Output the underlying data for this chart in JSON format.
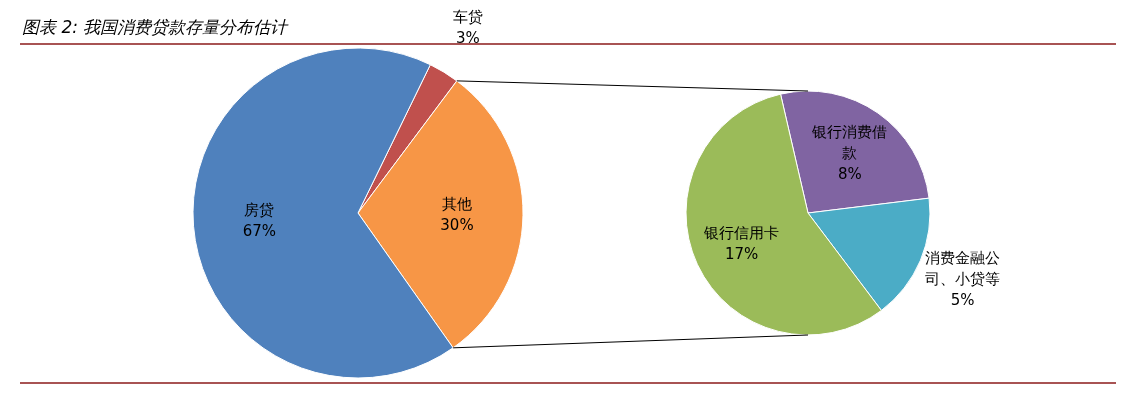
{
  "chart_data": [
    {
      "type": "pie",
      "title": "图表 2: 我国消费贷款存量分布估计",
      "categories": [
        "车贷",
        "其他",
        "房贷"
      ],
      "values": [
        3,
        30,
        67
      ],
      "colors": [
        "#c0504d",
        "#f79646",
        "#4f81bd"
      ],
      "value_labels": [
        "3%",
        "30%",
        "67%"
      ]
    },
    {
      "type": "pie",
      "categories": [
        "银行消费借款",
        "消费金融公司、小贷等",
        "银行信用卡"
      ],
      "values": [
        8,
        5,
        17
      ],
      "colors": [
        "#8064a2",
        "#4bacc6",
        "#9bbb59"
      ],
      "value_labels": [
        "8%",
        "5%",
        "17%"
      ]
    }
  ]
}
